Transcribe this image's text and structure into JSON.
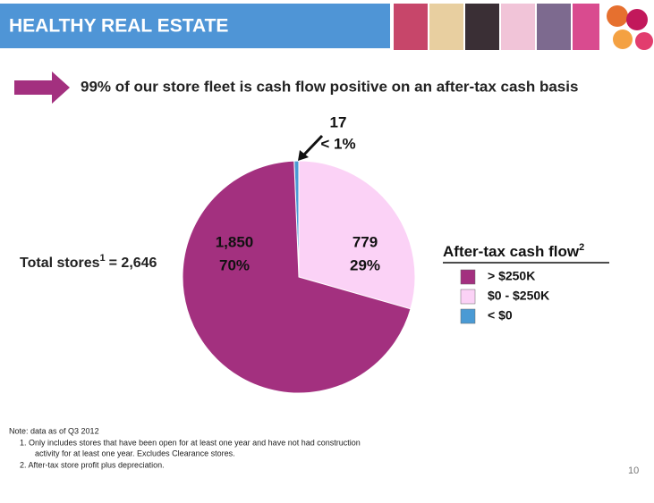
{
  "header": {
    "title": "HEALTHY REAL ESTATE"
  },
  "headline": "99% of our store fleet is cash flow positive on an after-tax cash basis",
  "total": {
    "text": "Total stores",
    "sup": "1",
    "value": "= 2,646"
  },
  "chart_data": {
    "type": "pie",
    "legend_title": "After-tax cash flow",
    "legend_title_sup": "2",
    "categories": [
      "> $250K",
      "$0 - $250K",
      "< $0"
    ],
    "values": [
      1850,
      779,
      17
    ],
    "value_labels": [
      "1,850",
      "779",
      "17"
    ],
    "percent_labels": [
      "70%",
      "29%",
      "< 1%"
    ],
    "colors": [
      "#a3307f",
      "#fbd2f6",
      "#4a9ad4"
    ],
    "legend": "right"
  },
  "notes": [
    "Note: data as of Q3 2012",
    "1.    Only includes stores that have been open for at least one year and have not had construction",
    "activity for at least one year.  Excludes Clearance stores.",
    "2.    After-tax store profit plus depreciation."
  ],
  "page_number": "10"
}
